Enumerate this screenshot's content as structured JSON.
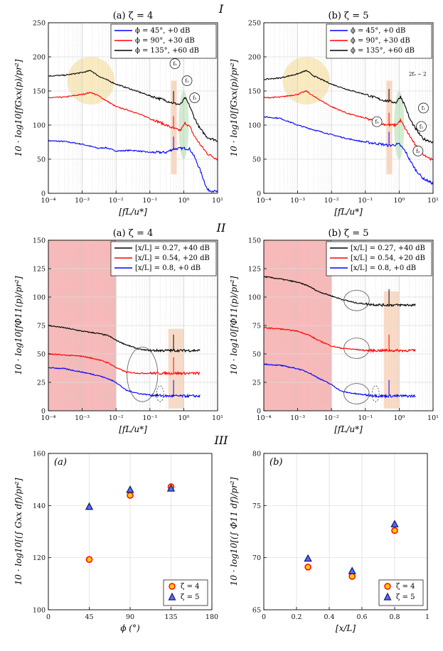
{
  "section_labels": [
    "I",
    "II",
    "III"
  ],
  "chart_data": [
    {
      "id": "I-a",
      "type": "line",
      "title": "(a) ζ = 4",
      "xlabel": "[fL/u*]",
      "ylabel": "10 · log10[fGxx(p)/pr²]",
      "xscale": "log",
      "xlim": [
        0.0001,
        10
      ],
      "ylim": [
        0,
        250
      ],
      "xticks": [
        "10⁻⁴",
        "10⁻³",
        "10⁻²",
        "10⁻¹",
        "10⁰",
        "10¹"
      ],
      "yticks": [
        "0",
        "50",
        "100",
        "150",
        "200",
        "250"
      ],
      "series": [
        {
          "name": "ϕ = 45°, +0 dB",
          "color": "#0000ff",
          "x": [
            0.0001,
            0.0003,
            0.001,
            0.003,
            0.005,
            0.01,
            0.03,
            0.1,
            0.3,
            0.5,
            1,
            1.5,
            2,
            3,
            5,
            10
          ],
          "y": [
            77,
            76,
            72,
            66,
            67,
            62,
            63,
            60,
            60,
            65,
            66,
            65,
            55,
            35,
            5,
            2
          ]
        },
        {
          "name": "ϕ = 90°, +30 dB",
          "color": "#ff0000",
          "x": [
            0.0001,
            0.0003,
            0.001,
            0.0018,
            0.003,
            0.01,
            0.03,
            0.1,
            0.3,
            0.5,
            0.8,
            1.1,
            1.5,
            2,
            3,
            5,
            10
          ],
          "y": [
            140,
            141,
            145,
            148,
            143,
            127,
            120,
            110,
            100,
            95,
            92,
            103,
            98,
            85,
            72,
            58,
            50
          ]
        },
        {
          "name": "ϕ = 135°, +60 dB",
          "color": "#000000",
          "x": [
            0.0001,
            0.0003,
            0.001,
            0.0018,
            0.003,
            0.01,
            0.03,
            0.1,
            0.3,
            0.5,
            0.8,
            1.1,
            1.5,
            2,
            3,
            5,
            10
          ],
          "y": [
            172,
            173,
            177,
            180,
            172,
            160,
            152,
            143,
            136,
            132,
            130,
            140,
            128,
            112,
            95,
            82,
            77
          ]
        }
      ],
      "annotations": [
        "f₀",
        "f₁",
        "f₂"
      ]
    },
    {
      "id": "I-b",
      "type": "line",
      "title": "(b) ζ = 5",
      "xlabel": "[fL/u*]",
      "ylabel": "10 · log10[fGxx(p)/pr²]",
      "xscale": "log",
      "xlim": [
        0.0001,
        10
      ],
      "ylim": [
        0,
        250
      ],
      "xticks": [
        "10⁻⁴",
        "10⁻³",
        "10⁻²",
        "10⁻¹",
        "10⁰",
        "10¹"
      ],
      "yticks": [
        "0",
        "50",
        "100",
        "150",
        "200",
        "250"
      ],
      "series": [
        {
          "name": "ϕ = 45°, +0 dB",
          "color": "#0000ff",
          "x": [
            0.0001,
            0.0003,
            0.001,
            0.003,
            0.01,
            0.03,
            0.1,
            0.3,
            0.5,
            1,
            1.5,
            2,
            3,
            5,
            10
          ],
          "y": [
            112,
            110,
            100,
            93,
            86,
            80,
            75,
            72,
            70,
            72,
            62,
            50,
            35,
            22,
            14
          ]
        },
        {
          "name": "ϕ = 90°, +30 dB",
          "color": "#ff0000",
          "x": [
            0.0001,
            0.0003,
            0.001,
            0.0018,
            0.003,
            0.01,
            0.03,
            0.1,
            0.3,
            0.5,
            0.8,
            1.1,
            1.5,
            2,
            3,
            5,
            10
          ],
          "y": [
            140,
            141,
            145,
            150,
            142,
            127,
            117,
            110,
            102,
            100,
            100,
            107,
            95,
            85,
            70,
            58,
            48
          ]
        },
        {
          "name": "ϕ = 135°, +60 dB",
          "color": "#000000",
          "x": [
            0.0001,
            0.0003,
            0.001,
            0.0018,
            0.003,
            0.01,
            0.03,
            0.1,
            0.3,
            0.5,
            0.8,
            1.1,
            1.5,
            2,
            3,
            5,
            10
          ],
          "y": [
            167,
            169,
            175,
            180,
            172,
            160,
            152,
            145,
            137,
            135,
            133,
            142,
            128,
            110,
            95,
            80,
            75
          ]
        }
      ],
      "annotations": [
        "2f₀ − 2",
        "f₀",
        "f₁",
        "f₂",
        "f₃"
      ]
    },
    {
      "id": "II-a",
      "type": "line",
      "title": "(a) ζ = 4",
      "xlabel": "[fL/u*]",
      "ylabel": "10 · log10[fΦ11(p)/pr²]",
      "xscale": "log",
      "xlim": [
        0.0001,
        10
      ],
      "ylim": [
        0,
        150
      ],
      "xticks": [
        "10⁻⁴",
        "10⁻³",
        "10⁻²",
        "10⁻¹",
        "10⁰",
        "10¹"
      ],
      "yticks": [
        "0",
        "25",
        "50",
        "75",
        "100",
        "125",
        "150"
      ],
      "series": [
        {
          "name": "[x/L] = 0.27, +40 dB",
          "color": "#000000",
          "x": [
            0.0001,
            0.0003,
            0.001,
            0.003,
            0.006,
            0.01,
            0.02,
            0.05,
            0.1,
            0.3,
            1,
            3
          ],
          "y": [
            75,
            73,
            70,
            68,
            66,
            62,
            58,
            54,
            53,
            53,
            53,
            53
          ]
        },
        {
          "name": "[x/L] = 0.54, +20 dB",
          "color": "#ff0000",
          "x": [
            0.0001,
            0.0003,
            0.001,
            0.003,
            0.006,
            0.01,
            0.02,
            0.05,
            0.1,
            0.3,
            1,
            3
          ],
          "y": [
            50,
            49,
            48,
            45,
            42,
            38,
            34,
            33,
            33,
            33,
            33,
            33
          ]
        },
        {
          "name": "[x/L] = 0.8, +0 dB",
          "color": "#0000ff",
          "x": [
            0.0001,
            0.0003,
            0.001,
            0.003,
            0.006,
            0.01,
            0.02,
            0.05,
            0.1,
            0.3,
            1,
            3
          ],
          "y": [
            38,
            37,
            34,
            31,
            28,
            25,
            18,
            15,
            14,
            13,
            13,
            13
          ]
        }
      ]
    },
    {
      "id": "II-b",
      "type": "line",
      "title": "(b) ζ = 5",
      "xlabel": "[fL/u*]",
      "ylabel": "10 · log10[fΦ11(p)/pr²]",
      "xscale": "log",
      "xlim": [
        0.0001,
        10
      ],
      "ylim": [
        0,
        150
      ],
      "xticks": [
        "10⁻⁴",
        "10⁻³",
        "10⁻²",
        "10⁻¹",
        "10⁰",
        "10¹"
      ],
      "yticks": [
        "0",
        "25",
        "50",
        "75",
        "100",
        "125",
        "150"
      ],
      "series": [
        {
          "name": "[x/L] = 0.27, +40 dB",
          "color": "#000000",
          "x": [
            0.0001,
            0.0003,
            0.001,
            0.002,
            0.004,
            0.01,
            0.02,
            0.05,
            0.1,
            0.3,
            1,
            3
          ],
          "y": [
            118,
            116,
            113,
            110,
            105,
            101,
            98,
            95,
            94,
            93,
            93,
            93
          ]
        },
        {
          "name": "[x/L] = 0.54, +20 dB",
          "color": "#ff0000",
          "x": [
            0.0001,
            0.0003,
            0.001,
            0.002,
            0.004,
            0.01,
            0.02,
            0.05,
            0.1,
            0.3,
            1,
            3
          ],
          "y": [
            73,
            72,
            70,
            67,
            62,
            57,
            55,
            54,
            53,
            53,
            53,
            53
          ]
        },
        {
          "name": "[x/L] = 0.8, +0 dB",
          "color": "#0000ff",
          "x": [
            0.0001,
            0.0003,
            0.001,
            0.002,
            0.004,
            0.01,
            0.02,
            0.05,
            0.1,
            0.3,
            1,
            3
          ],
          "y": [
            41,
            40,
            37,
            34,
            29,
            23,
            17,
            15,
            14,
            13,
            13,
            13
          ]
        }
      ]
    },
    {
      "id": "III-a",
      "type": "scatter",
      "title": "(a)",
      "xlabel": "ϕ (°)",
      "ylabel": "10 · log10[(∫ Gxx df)/pr²]",
      "xlim": [
        0,
        180
      ],
      "ylim": [
        100,
        160
      ],
      "xticks": [
        "0",
        "45",
        "90",
        "135",
        "180"
      ],
      "yticks": [
        "100",
        "120",
        "140",
        "160"
      ],
      "series": [
        {
          "name": "ζ = 4",
          "marker": "circle",
          "fill": "#ffcc00",
          "stroke": "#ff0000",
          "x": [
            45,
            90,
            135
          ],
          "y": [
            119.3,
            143.9,
            147.2
          ]
        },
        {
          "name": "ζ = 5",
          "marker": "triangle",
          "fill": "#4f6fff",
          "stroke": "#1a1a66",
          "x": [
            45,
            90,
            135
          ],
          "y": [
            139.5,
            146.0,
            146.5
          ]
        }
      ]
    },
    {
      "id": "III-b",
      "type": "scatter",
      "title": "(b)",
      "xlabel": "[x/L]",
      "ylabel": "10 · log10[(∫ Φ11 df)/pr²]",
      "xlim": [
        0,
        1
      ],
      "ylim": [
        65,
        80
      ],
      "xticks": [
        "0",
        "0.2",
        "0.4",
        "0.6",
        "0.8",
        "1"
      ],
      "yticks": [
        "65",
        "70",
        "75",
        "80"
      ],
      "series": [
        {
          "name": "ζ = 4",
          "marker": "circle",
          "fill": "#ffcc00",
          "stroke": "#ff0000",
          "x": [
            0.27,
            0.54,
            0.8
          ],
          "y": [
            69.1,
            68.2,
            72.6
          ]
        },
        {
          "name": "ζ = 5",
          "marker": "triangle",
          "fill": "#4f6fff",
          "stroke": "#1a1a66",
          "x": [
            0.27,
            0.54,
            0.8
          ],
          "y": [
            69.9,
            68.7,
            73.2
          ]
        }
      ]
    }
  ]
}
